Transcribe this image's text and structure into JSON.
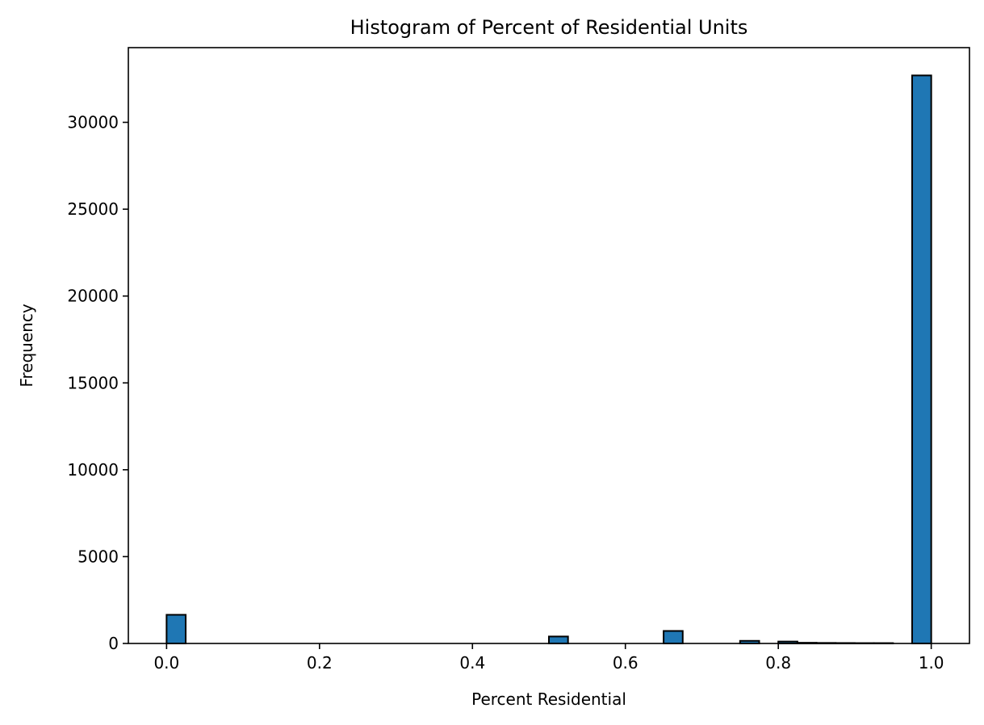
{
  "chart_data": {
    "type": "bar",
    "title": "Histogram of Percent of Residential Units",
    "xlabel": "Percent Residential",
    "ylabel": "Frequency",
    "xlim": [
      -0.05,
      1.05
    ],
    "ylim": [
      0,
      34300
    ],
    "x_ticks": [
      0.0,
      0.2,
      0.4,
      0.6,
      0.8,
      1.0
    ],
    "x_tick_labels": [
      "0.0",
      "0.2",
      "0.4",
      "0.6",
      "0.8",
      "1.0"
    ],
    "y_ticks": [
      0,
      5000,
      10000,
      15000,
      20000,
      25000,
      30000
    ],
    "y_tick_labels": [
      "0",
      "5000",
      "10000",
      "15000",
      "20000",
      "25000",
      "30000"
    ],
    "bin_width": 0.025,
    "bins": [
      {
        "x0": 0.0,
        "x1": 0.025,
        "value": 1650
      },
      {
        "x0": 0.5,
        "x1": 0.525,
        "value": 400
      },
      {
        "x0": 0.65,
        "x1": 0.675,
        "value": 720
      },
      {
        "x0": 0.75,
        "x1": 0.775,
        "value": 150
      },
      {
        "x0": 0.8,
        "x1": 0.825,
        "value": 110
      },
      {
        "x0": 0.825,
        "x1": 0.85,
        "value": 40
      },
      {
        "x0": 0.85,
        "x1": 0.875,
        "value": 30
      },
      {
        "x0": 0.875,
        "x1": 0.9,
        "value": 25
      },
      {
        "x0": 0.9,
        "x1": 0.925,
        "value": 20
      },
      {
        "x0": 0.925,
        "x1": 0.95,
        "value": 20
      },
      {
        "x0": 0.975,
        "x1": 1.0,
        "value": 32700
      }
    ],
    "bar_color": "#1f77b4",
    "edge_color": "#000000",
    "grid": false,
    "legend": "none"
  }
}
